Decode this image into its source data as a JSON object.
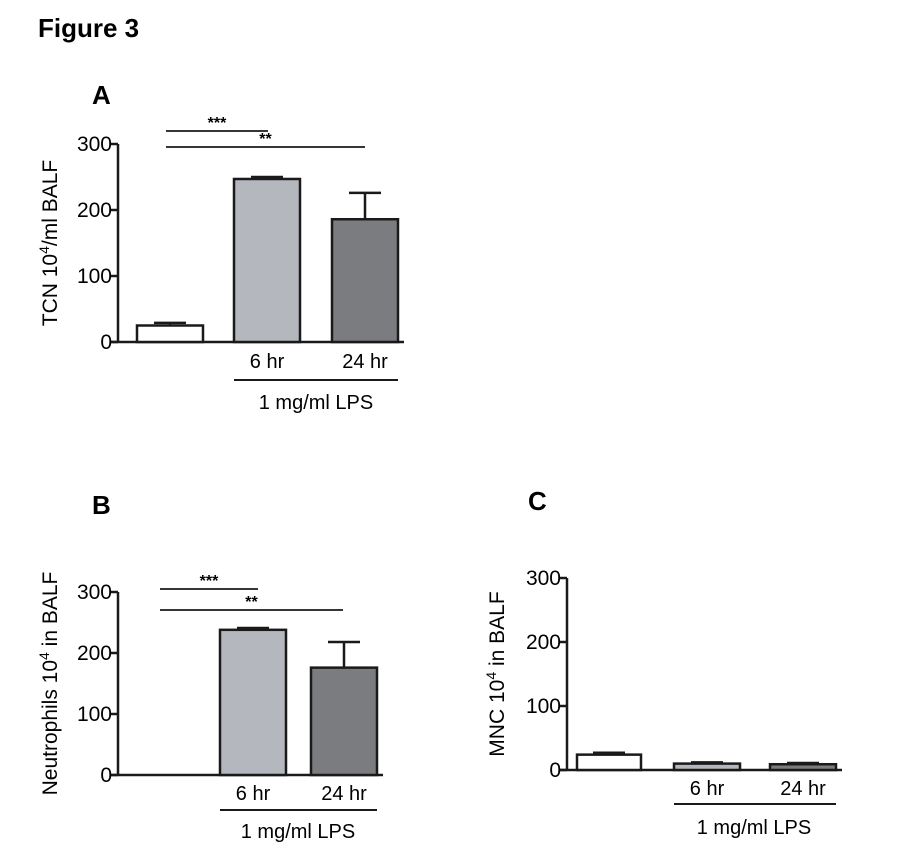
{
  "figure_title": "Figure 3",
  "colors": {
    "control": "#ffffff",
    "h6": "#b4b7bd",
    "h24": "#7a7c7f",
    "stroke": "#1a1a1a"
  },
  "chart_data": [
    {
      "panel": "A",
      "type": "bar",
      "ylabel": "TCN 10",
      "ylabel_sup": "4",
      "ylabel_rest": "/ml BALF",
      "ylim": [
        0,
        300
      ],
      "yticks": [
        0,
        100,
        200,
        300
      ],
      "categories": [
        "",
        "6 hr",
        "24 hr"
      ],
      "values": [
        25,
        247,
        186
      ],
      "errors": [
        4,
        3,
        40
      ],
      "group_label": "1 mg/ml LPS",
      "significance": [
        {
          "from": 0,
          "to": 1,
          "label": "***"
        },
        {
          "from": 0,
          "to": 2,
          "label": "**"
        }
      ]
    },
    {
      "panel": "B",
      "type": "bar",
      "ylabel": "Neutrophils 10",
      "ylabel_sup": "4",
      "ylabel_rest": " in BALF",
      "ylim": [
        0,
        300
      ],
      "yticks": [
        0,
        100,
        200,
        300
      ],
      "categories": [
        "",
        "6 hr",
        "24 hr"
      ],
      "values": [
        0,
        238,
        176
      ],
      "errors": [
        0,
        3,
        42
      ],
      "group_label": "1 mg/ml LPS",
      "significance": [
        {
          "from": 0,
          "to": 1,
          "label": "***"
        },
        {
          "from": 0,
          "to": 2,
          "label": "**"
        }
      ]
    },
    {
      "panel": "C",
      "type": "bar",
      "ylabel": "MNC 10",
      "ylabel_sup": "4",
      "ylabel_rest": " in BALF",
      "ylim": [
        0,
        300
      ],
      "yticks": [
        0,
        100,
        200,
        300
      ],
      "categories": [
        "",
        "6 hr",
        "24 hr"
      ],
      "values": [
        24,
        10,
        9
      ],
      "errors": [
        3,
        2,
        2
      ],
      "group_label": "1 mg/ml LPS",
      "significance": []
    }
  ]
}
